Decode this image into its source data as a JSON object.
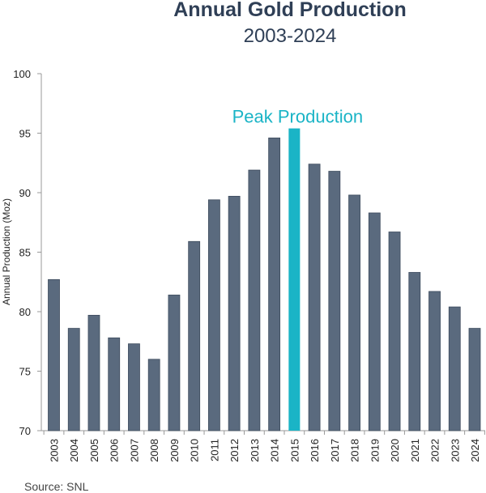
{
  "chart_data": {
    "type": "bar",
    "title": "Annual Gold Production",
    "subtitle": "2003-2024",
    "xlabel": "",
    "ylabel": "Annual Production (Moz)",
    "ylim": [
      70,
      100
    ],
    "yticks": [
      "70",
      "75",
      "80",
      "85",
      "90",
      "95",
      "100"
    ],
    "grid": false,
    "categories": [
      "2003",
      "2004",
      "2005",
      "2006",
      "2007",
      "2008",
      "2009",
      "2010",
      "2011",
      "2012",
      "2013",
      "2014",
      "2015",
      "2016",
      "2017",
      "2018",
      "2019",
      "2020",
      "2021",
      "2022",
      "2023",
      "2024"
    ],
    "values": [
      82.7,
      78.6,
      79.7,
      77.8,
      77.3,
      76.0,
      81.4,
      85.9,
      89.4,
      89.7,
      91.9,
      94.6,
      95.4,
      92.4,
      91.8,
      89.8,
      88.3,
      86.7,
      83.3,
      81.7,
      80.4,
      78.6
    ],
    "highlight": {
      "category": "2015",
      "color": "#1ab4c6"
    },
    "bar_color": "#5a6a7e",
    "annotations": [
      {
        "text": "Peak Production",
        "category": "2015",
        "color": "#1ab4c6"
      }
    ],
    "source": "Source:  SNL"
  }
}
